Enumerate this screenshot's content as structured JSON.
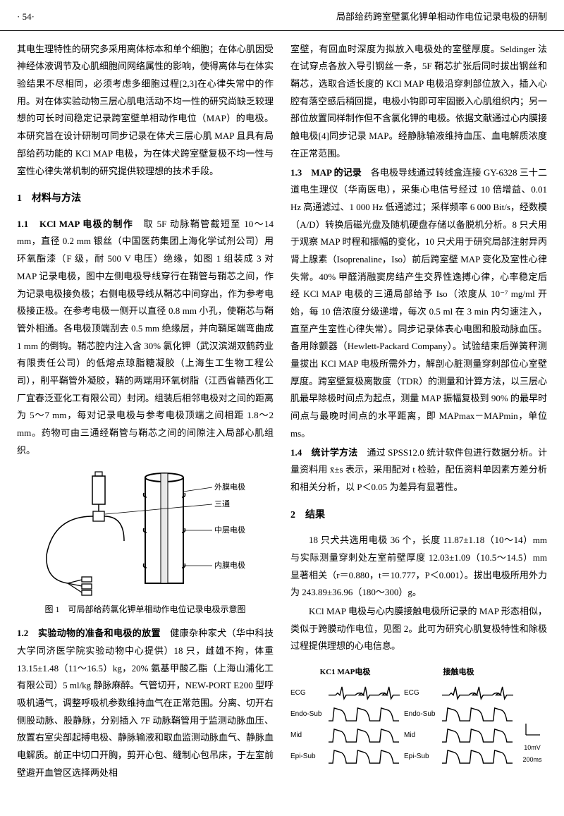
{
  "header": {
    "page_num": "· 54·",
    "running_title": "局部给药跨室壁氯化钾单相动作电位记录电极的研制"
  },
  "left_column": {
    "intro_para": "其电生理特性的研究多采用离体标本和单个细胞；在体心肌因受神经体液调节及心肌细胞间网络属性的影响，使得离体与在体实验结果不尽相同，必须考虑多细胞过程[2,3]在心律失常中的作用。对在体实验动物三层心肌电活动不均一性的研究尚缺乏较理想的可长时间稳定记录跨室壁单相动作电位（MAP）的电极。本研究旨在设计研制可同步记录在体犬三层心肌 MAP 且具有局部给药功能的 KCl MAP 电极，为在体犬跨室壁复极不均一性与室性心律失常机制的研究提供较理想的技术手段。",
    "section1_title": "1　材料与方法",
    "sub1_1_label": "1.1　KCl MAP 电极的制作",
    "sub1_1_text": "　取 5F 动脉鞘管截短至 10～14 mm，直径 0.2 mm 银丝（中国医药集团上海化学试剂公司）用环氧酯漆（F 级，耐 500 V 电压）绝缘，如图 1 组装成 3 对 MAP 记录电极，图中左侧电极导线穿行在鞘管与鞘芯之间，作为记录电极接负极；右侧电极导线从鞘芯中间穿出，作为参考电极接正极。在参考电极一侧开以直径 0.8 mm 小孔，使鞘芯与鞘管外相通。各电极顶端刮去 0.5 mm 绝缘层，并向鞘尾端弯曲成 1 mm 的倒钩。鞘芯腔内注入含 30% 氯化钾（武汉滨湖双鹤药业有限责任公司）的低熔点琼脂糖凝胶（上海生工生物工程公司），削平鞘管外凝胶，鞘的两端用环氧树脂（江西省赣西化工厂宜春泛亚化工有限公司）封闭。组装后相邻电极对之间的距离为 5～7 mm，每对记录电极与参考电极顶端之间相距 1.8～2 mm。药物可由三通经鞘管与鞘芯之间的间隙注入局部心肌组织。",
    "figure1": {
      "caption": "图 1　可局部给药氯化钾单相动作电位记录电极示意图",
      "labels": {
        "outer": "外膜电极",
        "three_way": "三通",
        "mid": "中层电极",
        "inner": "内膜电极"
      }
    },
    "sub1_2_label": "1.2　实验动物的准备和电极的放置",
    "sub1_2_text": "　健康杂种家犬（华中科技大学同济医学院实验动物中心提供）18 只，雌雄不拘，体重 13.15±1.48（11～16.5）kg，20% 氨基甲酸乙酯（上海山浦化工有限公司）5 ml/kg 静脉麻醉。气管切开，NEW-PORT E200 型呼吸机通气，调整呼吸机参数维持血气在正常范围。分离、切开右侧股动脉、股静脉，分别插入 7F 动脉鞘管用于监测动脉血压、放置右室尖部起搏电极、静脉输液和取血监测动脉血气、静脉血电解质。前正中切口开胸，剪开心包、缝制心包吊床，于左室前壁避开血管区选择两处相"
  },
  "right_column": {
    "cont_para": "室壁，有回血时深度为拟放入电极处的室壁厚度。Seldinger 法在试穿点各放入导引钢丝一条，5F 鞘芯扩张后同时拔出钢丝和鞘芯，选取合适长度的 KCl MAP 电极沿穿刺部位放入，插入心腔有落空感后稍回提，电极小钩即可牢固嵌入心肌组织内；另一部位放置同样制作但不含氯化钾的电极。依据文献通过心内膜接触电极[4]同步记录 MAP。经静脉输液维持血压、血电解质浓度在正常范围。",
    "sub1_3_label": "1.3　MAP 的记录",
    "sub1_3_text": "　各电极导线通过转线盒连接 GY-6328 三十二道电生理仪（华南医电），采集心电信号经过 10 倍增益、0.01 Hz 高通滤过、1 000 Hz 低通滤过；采样频率 6 000 Bit/s，经数模（A/D）转换后磁光盘及随机硬盘存储以备脱机分析。8 只犬用于观察 MAP 时程和振幅的变化，10 只犬用于研究局部注射异丙肾上腺素（Isoprenaline，Iso）前后跨室壁 MAP 变化及室性心律失常。40% 甲醛消融窦房结产生交界性逸搏心律，心率稳定后经 KCl MAP 电极的三通局部给予 Iso（浓度从 10⁻⁷ mg/ml 开始，每 10 倍浓度分级递增，每次 0.5 ml 在 3 min 内匀速注入，直至产生室性心律失常）。同步记录体表心电图和股动脉血压。备用除颤器（Hewlett-Packard Company）。试验结束后弹簧秤测量拔出 KCl MAP 电极所需外力，解剖心脏测量穿刺部位心室壁厚度。跨室壁复极离散度（TDR）的测量和计算方法，以三层心肌最早除极时间点为起点，测量 MAP 振幅复极到 90% 的最早时间点与最晚时间点的水平距离，即 MAPmax－MAPmin，单位 ms。",
    "sub1_4_label": "1.4　统计学方法",
    "sub1_4_text": "　通过 SPSS12.0 统计软件包进行数据分析。计量资料用 x̄±s 表示，采用配对 t 检验，配伍资料单因素方差分析和相关分析，以 P＜0.05 为差异有显著性。",
    "section2_title": "2　结果",
    "result_para1": "18 只犬共选用电极 36 个，长度 11.87±1.18（10～14）mm 与实际测量穿刺处左室前壁厚度 12.03±1.09（10.5～14.5）mm 显著相关（r＝0.880，t＝10.777，P＜0.001）。拔出电极所用外力为 243.89±36.96（180～300）g。",
    "result_para2": "KCl MAP 电极与心内膜接触电极所记录的 MAP 形态相似，类似于跨膜动作电位，见图 2。此可为研究心肌复极特性和除极过程提供理想的心电信息。",
    "figure2": {
      "left_title": "KC1 MAP电极",
      "right_title": "接触电极",
      "traces": [
        "ECG",
        "Endo-Sub",
        "Mid",
        "Epi-Sub"
      ],
      "scale_v": "10mV",
      "scale_h": "200ms",
      "colors": {
        "line": "#000000",
        "bg": "#ffffff"
      },
      "stroke_width": 1.4
    }
  }
}
